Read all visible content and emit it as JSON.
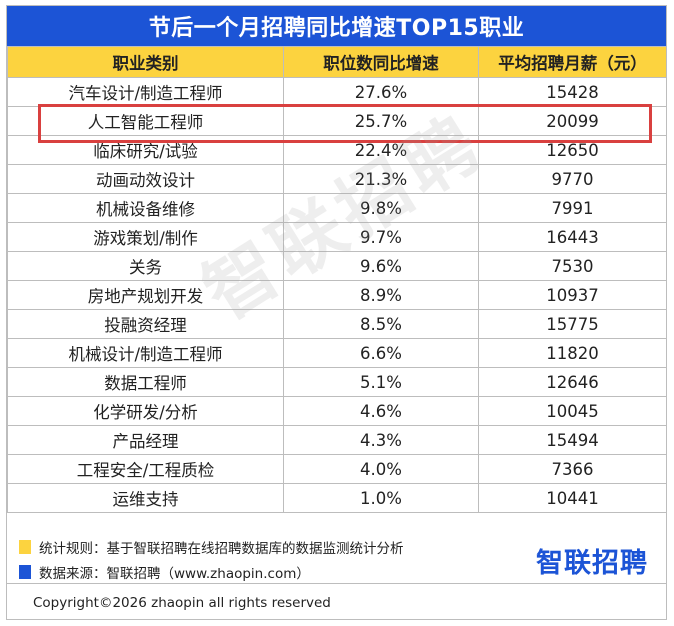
{
  "title": "节后一个月招聘同比增速TOP15职业",
  "table": {
    "headers": [
      "职业类别",
      "职位数同比增速",
      "平均招聘月薪（元）"
    ],
    "rows": [
      [
        "汽车设计/制造工程师",
        "27.6%",
        "15428"
      ],
      [
        "人工智能工程师",
        "25.7%",
        "20099"
      ],
      [
        "临床研究/试验",
        "22.4%",
        "12650"
      ],
      [
        "动画动效设计",
        "21.3%",
        "9770"
      ],
      [
        "机械设备维修",
        "9.8%",
        "7991"
      ],
      [
        "游戏策划/制作",
        "9.7%",
        "16443"
      ],
      [
        "关务",
        "9.6%",
        "7530"
      ],
      [
        "房地产规划开发",
        "8.9%",
        "10937"
      ],
      [
        "投融资经理",
        "8.5%",
        "15775"
      ],
      [
        "机械设计/制造工程师",
        "6.6%",
        "11820"
      ],
      [
        "数据工程师",
        "5.1%",
        "12646"
      ],
      [
        "化学研发/分析",
        "4.6%",
        "10045"
      ],
      [
        "产品经理",
        "4.3%",
        "15494"
      ],
      [
        "工程安全/工程质检",
        "4.0%",
        "7366"
      ],
      [
        "运维支持",
        "1.0%",
        "10441"
      ]
    ],
    "highlighted_row": 1
  },
  "watermark": "智联招聘",
  "notes": [
    {
      "text": "统计规则：基于智联招聘在线招聘数据库的数据监测统计分析",
      "color": "#fcd33f"
    },
    {
      "text": "数据来源：智联招聘（www.zhaopin.com）",
      "color": "#1c54d6"
    }
  ],
  "logo": "智联招聘",
  "copyright": "Copyright©2026 zhaopin all rights reserved",
  "colors": {
    "title_bg": "#1c54d6",
    "header_bg": "#fcd33f",
    "highlight_border": "#d9403f"
  }
}
